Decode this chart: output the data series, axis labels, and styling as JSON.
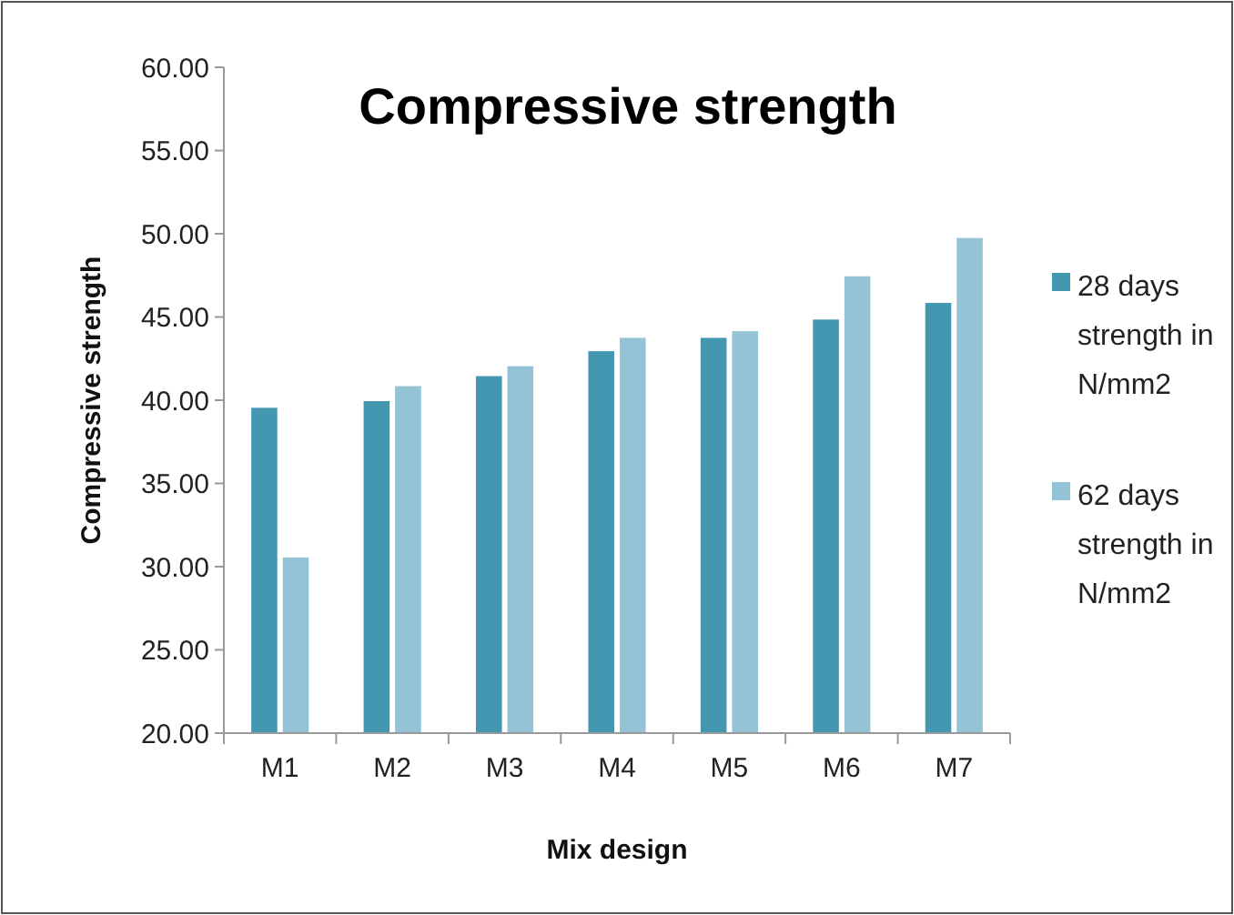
{
  "chart_data": {
    "type": "bar",
    "title": "Compressive strength",
    "xlabel": "Mix design",
    "ylabel": "Compressive strength",
    "categories": [
      "M1",
      "M2",
      "M3",
      "M4",
      "M5",
      "M6",
      "M7"
    ],
    "series": [
      {
        "name": "28 days strength in N/mm2",
        "color": "#4397b0",
        "values": [
          39.6,
          40.0,
          41.5,
          43.0,
          43.8,
          44.9,
          45.9
        ]
      },
      {
        "name": "62 days strength in N/mm2",
        "color": "#93c3d5",
        "values": [
          30.6,
          40.9,
          42.1,
          43.8,
          44.2,
          47.5,
          49.8
        ]
      }
    ],
    "ylim": [
      20,
      60
    ],
    "yticks": [
      {
        "value": 20,
        "label": "20.00"
      },
      {
        "value": 25,
        "label": "25.00"
      },
      {
        "value": 30,
        "label": "30.00"
      },
      {
        "value": 35,
        "label": "35.00"
      },
      {
        "value": 40,
        "label": "40.00"
      },
      {
        "value": 45,
        "label": "45.00"
      },
      {
        "value": 50,
        "label": "50.00"
      },
      {
        "value": 55,
        "label": "55.00"
      },
      {
        "value": 60,
        "label": "60.00"
      }
    ],
    "legend": "right",
    "grid": false
  }
}
